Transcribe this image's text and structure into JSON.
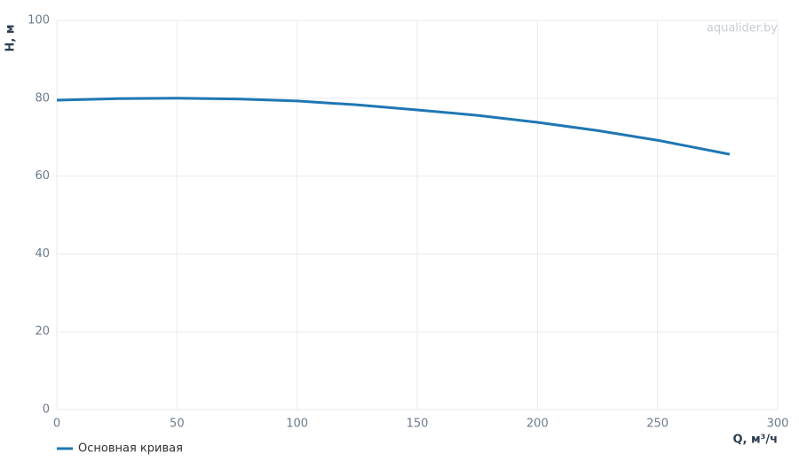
{
  "chart_data": {
    "type": "line",
    "watermark": "aqualider.by",
    "x_label": "Q, м³/ч",
    "y_label": "H, м",
    "x": [
      0,
      25,
      50,
      75,
      100,
      125,
      150,
      175,
      200,
      225,
      250,
      280
    ],
    "series": [
      {
        "name": "Основная кривая",
        "color": "#1f77b4",
        "values": [
          79.5,
          79.9,
          80.0,
          79.8,
          79.3,
          78.3,
          77.0,
          75.6,
          73.8,
          71.7,
          69.2,
          65.6
        ]
      }
    ],
    "xlim": [
      0,
      300
    ],
    "ylim": [
      0,
      100
    ],
    "xticks": [
      0,
      50,
      100,
      150,
      200,
      250,
      300
    ],
    "yticks": [
      0,
      20,
      40,
      60,
      80,
      100
    ],
    "grid": true
  }
}
